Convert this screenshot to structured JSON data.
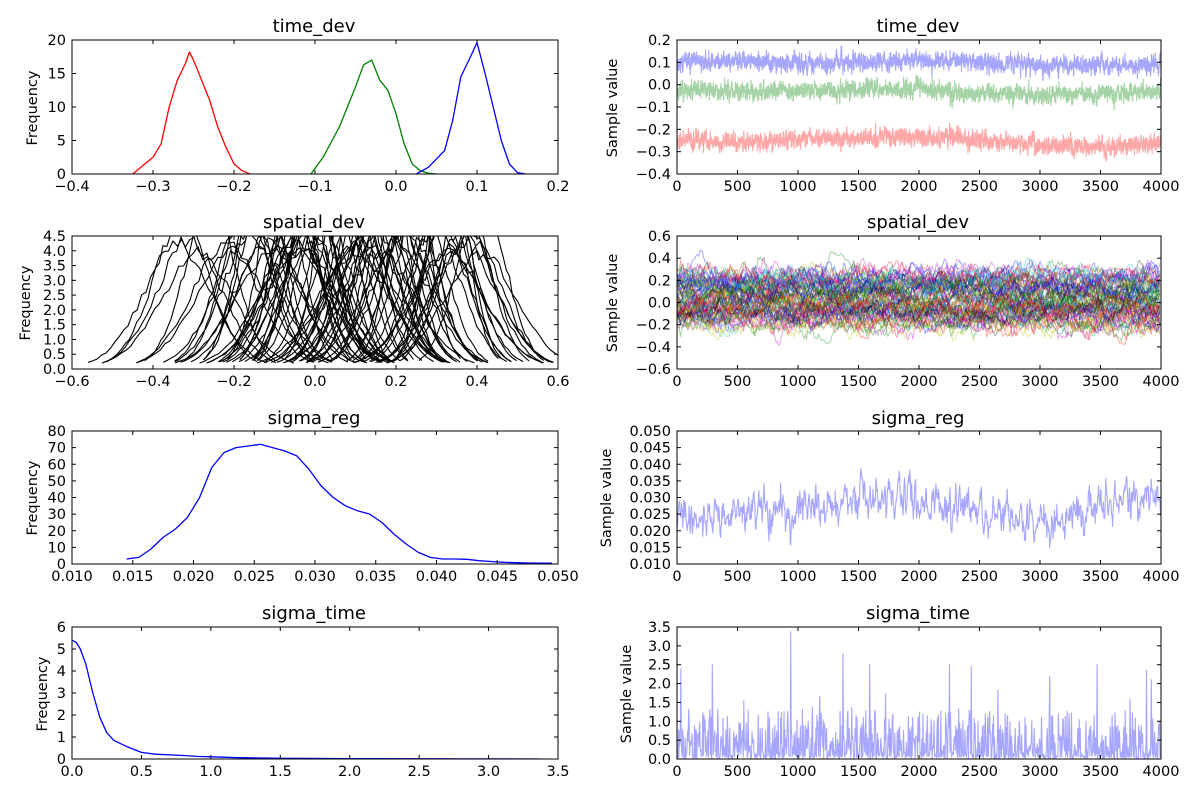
{
  "figure": {
    "background": "#ffffff"
  },
  "chart_data": [
    {
      "type": "line",
      "title": "time_dev",
      "ylabel": "Frequency",
      "xlim": [
        -0.4,
        0.2
      ],
      "ylim": [
        0,
        20
      ],
      "xticks": [
        -0.4,
        -0.3,
        -0.2,
        -0.1,
        0.0,
        0.1,
        0.2
      ],
      "xtick_labels": [
        "−0.4",
        "−0.3",
        "−0.2",
        "−0.1",
        "0.0",
        "0.1",
        "0.2"
      ],
      "yticks": [
        0,
        5,
        10,
        15,
        20
      ],
      "ytick_labels": [
        "0",
        "5",
        "10",
        "15",
        "20"
      ],
      "series": [
        {
          "color": "#ff0000",
          "x": [
            -0.325,
            -0.31,
            -0.3,
            -0.29,
            -0.28,
            -0.27,
            -0.26,
            -0.255,
            -0.25,
            -0.245,
            -0.24,
            -0.23,
            -0.22,
            -0.21,
            -0.2,
            -0.19,
            -0.18
          ],
          "y": [
            0,
            1.5,
            2.5,
            4.5,
            10,
            14,
            16.5,
            18.2,
            17,
            15.5,
            14,
            11,
            7,
            4,
            1.5,
            0.5,
            0
          ]
        },
        {
          "color": "#008000",
          "x": [
            -0.105,
            -0.09,
            -0.07,
            -0.05,
            -0.04,
            -0.03,
            -0.02,
            -0.01,
            0.0,
            0.01,
            0.02,
            0.03,
            0.04,
            0.05
          ],
          "y": [
            0,
            2.5,
            7,
            13,
            16.3,
            17,
            14,
            12.5,
            9,
            4.5,
            1.5,
            0.5,
            0.1,
            0
          ]
        },
        {
          "color": "#0000ff",
          "x": [
            0.025,
            0.04,
            0.06,
            0.07,
            0.08,
            0.09,
            0.1,
            0.11,
            0.12,
            0.13,
            0.14,
            0.15,
            0.16
          ],
          "y": [
            0,
            1,
            3.5,
            8,
            14.5,
            17,
            19.6,
            15,
            10,
            5,
            1.5,
            0.2,
            0
          ]
        }
      ]
    },
    {
      "type": "line",
      "title": "time_dev",
      "ylabel": "Sample value",
      "xlim": [
        0,
        4000
      ],
      "ylim": [
        -0.4,
        0.2
      ],
      "xticks": [
        0,
        500,
        1000,
        1500,
        2000,
        2500,
        3000,
        3500,
        4000
      ],
      "xtick_labels": [
        "0",
        "500",
        "1000",
        "1500",
        "2000",
        "2500",
        "3000",
        "3500",
        "4000"
      ],
      "yticks": [
        -0.4,
        -0.3,
        -0.2,
        -0.1,
        0.0,
        0.1,
        0.2
      ],
      "ytick_labels": [
        "−0.4",
        "−0.3",
        "−0.2",
        "−0.1",
        "0.0",
        "0.1",
        "0.2"
      ],
      "series": [
        {
          "color": "#0000ff",
          "trace": {
            "n": 4000,
            "base": [
              0.1,
              0.105,
              0.095,
              0.1,
              0.11,
              0.1,
              0.085,
              0.09,
              0.08
            ],
            "noise": 0.028,
            "seed": 11
          }
        },
        {
          "color": "#008000",
          "trace": {
            "n": 4000,
            "base": [
              -0.02,
              -0.03,
              -0.025,
              -0.02,
              -0.015,
              -0.04,
              -0.05,
              -0.04,
              -0.03
            ],
            "noise": 0.028,
            "seed": 23
          }
        },
        {
          "color": "#ff0000",
          "trace": {
            "n": 4000,
            "base": [
              -0.25,
              -0.255,
              -0.245,
              -0.24,
              -0.23,
              -0.245,
              -0.27,
              -0.28,
              -0.26
            ],
            "noise": 0.028,
            "seed": 37
          }
        }
      ]
    },
    {
      "type": "line",
      "title": "spatial_dev",
      "ylabel": "Frequency",
      "xlim": [
        -0.6,
        0.6
      ],
      "ylim": [
        0,
        4.5
      ],
      "xticks": [
        -0.6,
        -0.4,
        -0.2,
        0.0,
        0.2,
        0.4,
        0.6
      ],
      "xtick_labels": [
        "−0.6",
        "−0.4",
        "−0.2",
        "0.0",
        "0.2",
        "0.4",
        "0.6"
      ],
      "yticks": [
        0,
        0.5,
        1.0,
        1.5,
        2.0,
        2.5,
        3.0,
        3.5,
        4.0,
        4.5
      ],
      "ytick_labels": [
        "0.0",
        "0.5",
        "1.0",
        "1.5",
        "2.0",
        "2.5",
        "3.0",
        "3.5",
        "4.0",
        "4.5"
      ],
      "palette": [
        "#0000ff",
        "#008000",
        "#ff0000",
        "#00bfbf",
        "#bf00bf",
        "#bfbf00",
        "#000000"
      ],
      "density_family": {
        "count": 80,
        "center_range": [
          -0.35,
          0.42
        ],
        "sd_range": [
          0.05,
          0.1
        ],
        "seed": 5
      }
    },
    {
      "type": "line",
      "title": "spatial_dev",
      "ylabel": "Sample value",
      "xlim": [
        0,
        4000
      ],
      "ylim": [
        -0.6,
        0.6
      ],
      "xticks": [
        0,
        500,
        1000,
        1500,
        2000,
        2500,
        3000,
        3500,
        4000
      ],
      "xtick_labels": [
        "0",
        "500",
        "1000",
        "1500",
        "2000",
        "2500",
        "3000",
        "3500",
        "4000"
      ],
      "yticks": [
        -0.6,
        -0.4,
        -0.2,
        0.0,
        0.2,
        0.4,
        0.6
      ],
      "ytick_labels": [
        "−0.6",
        "−0.4",
        "−0.2",
        "0.0",
        "0.2",
        "0.4",
        "0.6"
      ],
      "palette": [
        "#0000ff",
        "#008000",
        "#ff0000",
        "#00bfbf",
        "#bf00bf",
        "#bfbf00",
        "#000000"
      ],
      "trace_family": {
        "count": 80,
        "n": 400,
        "center_range": [
          -0.3,
          0.35
        ],
        "noise": 0.1,
        "seed": 9
      }
    },
    {
      "type": "line",
      "title": "sigma_reg",
      "ylabel": "Frequency",
      "xlim": [
        0.01,
        0.05
      ],
      "ylim": [
        0,
        80
      ],
      "xticks": [
        0.01,
        0.015,
        0.02,
        0.025,
        0.03,
        0.035,
        0.04,
        0.045,
        0.05
      ],
      "xtick_labels": [
        "0.010",
        "0.015",
        "0.020",
        "0.025",
        "0.030",
        "0.035",
        "0.040",
        "0.045",
        "0.050"
      ],
      "yticks": [
        0,
        10,
        20,
        30,
        40,
        50,
        60,
        70,
        80
      ],
      "ytick_labels": [
        "0",
        "10",
        "20",
        "30",
        "40",
        "50",
        "60",
        "70",
        "80"
      ],
      "series": [
        {
          "color": "#0000ff",
          "x": [
            0.0145,
            0.0155,
            0.0165,
            0.0175,
            0.0185,
            0.0195,
            0.0205,
            0.0215,
            0.0225,
            0.0235,
            0.0245,
            0.0255,
            0.0265,
            0.0275,
            0.0285,
            0.0295,
            0.0305,
            0.0315,
            0.0325,
            0.0335,
            0.0345,
            0.0355,
            0.0365,
            0.0375,
            0.0385,
            0.0395,
            0.0405,
            0.0415,
            0.0425,
            0.0435,
            0.0445,
            0.0455,
            0.0465,
            0.0475,
            0.0485,
            0.0495
          ],
          "y": [
            3,
            4,
            9,
            16,
            21,
            28,
            40,
            58,
            67,
            70,
            71,
            72,
            70,
            68,
            65,
            57,
            47,
            40,
            35,
            32,
            30,
            25,
            18,
            12,
            7,
            4,
            3,
            3,
            2.8,
            2,
            1.5,
            1,
            0.8,
            0.6,
            0.5,
            0.5
          ]
        }
      ]
    },
    {
      "type": "line",
      "title": "sigma_reg",
      "ylabel": "Sample value",
      "xlim": [
        0,
        4000
      ],
      "ylim": [
        0.01,
        0.05
      ],
      "xticks": [
        0,
        500,
        1000,
        1500,
        2000,
        2500,
        3000,
        3500,
        4000
      ],
      "xtick_labels": [
        "0",
        "500",
        "1000",
        "1500",
        "2000",
        "2500",
        "3000",
        "3500",
        "4000"
      ],
      "yticks": [
        0.01,
        0.015,
        0.02,
        0.025,
        0.03,
        0.035,
        0.04,
        0.045,
        0.05
      ],
      "ytick_labels": [
        "0.010",
        "0.015",
        "0.020",
        "0.025",
        "0.030",
        "0.035",
        "0.040",
        "0.045",
        "0.050"
      ],
      "series": [
        {
          "color": "#0000ff",
          "trace": {
            "n": 1000,
            "base": [
              0.024,
              0.025,
              0.026,
              0.029,
              0.03,
              0.025,
              0.022,
              0.028,
              0.03
            ],
            "noise": 0.0045,
            "seed": 41
          }
        }
      ]
    },
    {
      "type": "line",
      "title": "sigma_time",
      "ylabel": "Frequency",
      "xlim": [
        0,
        3.5
      ],
      "ylim": [
        0,
        6
      ],
      "xticks": [
        0,
        0.5,
        1.0,
        1.5,
        2.0,
        2.5,
        3.0,
        3.5
      ],
      "xtick_labels": [
        "0.0",
        "0.5",
        "1.0",
        "1.5",
        "2.0",
        "2.5",
        "3.0",
        "3.5"
      ],
      "yticks": [
        0,
        1,
        2,
        3,
        4,
        5,
        6
      ],
      "ytick_labels": [
        "0",
        "1",
        "2",
        "3",
        "4",
        "5",
        "6"
      ],
      "series": [
        {
          "color": "#0000ff",
          "x": [
            0.0,
            0.03,
            0.06,
            0.1,
            0.15,
            0.2,
            0.25,
            0.3,
            0.4,
            0.5,
            0.6,
            0.8,
            0.9,
            1.0,
            1.2,
            1.5,
            2.0,
            2.5,
            3.0,
            3.38
          ],
          "y": [
            5.4,
            5.3,
            5.0,
            4.3,
            3.0,
            1.9,
            1.2,
            0.85,
            0.55,
            0.3,
            0.22,
            0.16,
            0.12,
            0.1,
            0.06,
            0.03,
            0.02,
            0.01,
            0.005,
            0
          ]
        }
      ]
    },
    {
      "type": "line",
      "title": "sigma_time",
      "ylabel": "Sample value",
      "xlim": [
        0,
        4000
      ],
      "ylim": [
        0,
        3.5
      ],
      "xticks": [
        0,
        500,
        1000,
        1500,
        2000,
        2500,
        3000,
        3500,
        4000
      ],
      "xtick_labels": [
        "0",
        "500",
        "1000",
        "1500",
        "2000",
        "2500",
        "3000",
        "3500",
        "4000"
      ],
      "yticks": [
        0,
        0.5,
        1.0,
        1.5,
        2.0,
        2.5,
        3.0,
        3.5
      ],
      "ytick_labels": [
        "0.0",
        "0.5",
        "1.0",
        "1.5",
        "2.0",
        "2.5",
        "3.0",
        "3.5"
      ],
      "series": [
        {
          "color": "#0000ff",
          "spikes": {
            "n": 1000,
            "seed": 53,
            "peaks": [
              [
                30,
                2.4
              ],
              [
                290,
                2.5
              ],
              [
                940,
                3.38
              ],
              [
                1370,
                2.8
              ],
              [
                1590,
                2.5
              ],
              [
                2250,
                2.5
              ],
              [
                2430,
                2.45
              ],
              [
                3080,
                2.2
              ],
              [
                3470,
                2.5
              ],
              [
                3880,
                2.35
              ],
              [
                3920,
                2.1
              ]
            ]
          }
        }
      ]
    }
  ]
}
